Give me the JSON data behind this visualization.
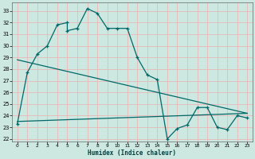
{
  "xlabel": "Humidex (Indice chaleur)",
  "bg_color": "#cce8e0",
  "grid_color": "#e8b8b8",
  "line_color": "#006868",
  "xlim": [
    -0.5,
    23.5
  ],
  "ylim": [
    21.8,
    33.7
  ],
  "yticks": [
    22,
    23,
    24,
    25,
    26,
    27,
    28,
    29,
    30,
    31,
    32,
    33
  ],
  "xticks": [
    0,
    1,
    2,
    3,
    4,
    5,
    6,
    7,
    8,
    9,
    10,
    11,
    12,
    13,
    14,
    15,
    16,
    17,
    18,
    19,
    20,
    21,
    22,
    23
  ],
  "line1_x": [
    0,
    1,
    2,
    3,
    4,
    5,
    5,
    6,
    7,
    8,
    9,
    10,
    11,
    12,
    13,
    14,
    15,
    16,
    17,
    18,
    19,
    20,
    21,
    22,
    23
  ],
  "line1_y": [
    23.3,
    27.7,
    29.3,
    30.0,
    31.8,
    32.0,
    31.3,
    31.5,
    33.2,
    32.8,
    31.5,
    31.5,
    31.5,
    29.0,
    27.5,
    27.1,
    22.0,
    22.9,
    23.2,
    24.7,
    24.7,
    23.0,
    22.8,
    24.0,
    23.8
  ],
  "line2_x": [
    0,
    23
  ],
  "line2_y": [
    28.8,
    24.2
  ],
  "line3_x": [
    0,
    23
  ],
  "line3_y": [
    23.5,
    24.2
  ]
}
